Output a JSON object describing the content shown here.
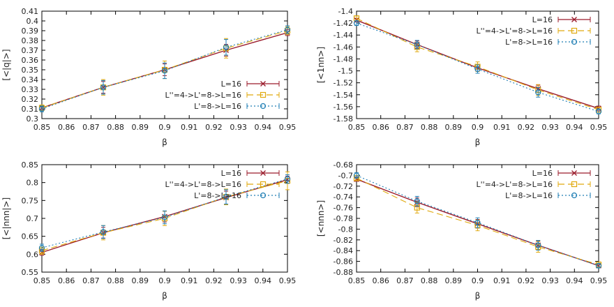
{
  "chart_data": [
    {
      "type": "line",
      "xlabel": "β",
      "ylabel": "[<|q|>]",
      "xlim": [
        0.85,
        0.95
      ],
      "ylim": [
        0.3,
        0.41
      ],
      "xticks": [
        "0.85",
        "0.86",
        "0.87",
        "0.88",
        "0.89",
        "0.9",
        "0.91",
        "0.92",
        "0.93",
        "0.94",
        "0.95"
      ],
      "yticks": [
        "0.3",
        "0.31",
        "0.32",
        "0.33",
        "0.34",
        "0.35",
        "0.36",
        "0.37",
        "0.38",
        "0.39",
        "0.4",
        "0.41"
      ],
      "legend_position": "bottom-right",
      "series": [
        {
          "name": "L=16",
          "x": [
            0.85,
            0.875,
            0.9,
            0.925,
            0.95
          ],
          "y": [
            0.311,
            0.332,
            0.35,
            0.37,
            0.388
          ],
          "err": [
            0.002,
            0.006,
            0.006,
            0.006,
            0.003
          ]
        },
        {
          "name": "L''=4->L'=8->L=16",
          "x": [
            0.85,
            0.875,
            0.9,
            0.925,
            0.95
          ],
          "y": [
            0.311,
            0.332,
            0.35,
            0.372,
            0.39
          ],
          "err": [
            0.003,
            0.008,
            0.009,
            0.01,
            0.004
          ]
        },
        {
          "name": "L'=8->L=16",
          "x": [
            0.85,
            0.875,
            0.9,
            0.925,
            0.95
          ],
          "y": [
            0.31,
            0.332,
            0.349,
            0.373,
            0.391
          ],
          "err": [
            0.003,
            0.007,
            0.008,
            0.008,
            0.004
          ]
        }
      ]
    },
    {
      "type": "line",
      "xlabel": "β",
      "ylabel": "[<1nn>]",
      "xlim": [
        0.85,
        0.95
      ],
      "ylim": [
        -1.58,
        -1.4
      ],
      "xticks": [
        "0.85",
        "0.86",
        "0.87",
        "0.88",
        "0.89",
        "0.9",
        "0.91",
        "0.92",
        "0.93",
        "0.94",
        "0.95"
      ],
      "yticks": [
        "-1.4",
        "-1.42",
        "-1.44",
        "-1.46",
        "-1.48",
        "-1.5",
        "-1.52",
        "-1.54",
        "-1.56",
        "-1.58"
      ],
      "legend_position": "top-right",
      "series": [
        {
          "name": "L=16",
          "x": [
            0.85,
            0.875,
            0.9,
            0.925,
            0.95
          ],
          "y": [
            -1.415,
            -1.456,
            -1.495,
            -1.53,
            -1.563
          ],
          "err": [
            0.003,
            0.006,
            0.006,
            0.006,
            0.004
          ]
        },
        {
          "name": "L''=4->L'=8->L=16",
          "x": [
            0.85,
            0.875,
            0.9,
            0.925,
            0.95
          ],
          "y": [
            -1.412,
            -1.46,
            -1.493,
            -1.532,
            -1.565
          ],
          "err": [
            0.004,
            0.008,
            0.008,
            0.009,
            0.004
          ]
        },
        {
          "name": "L'=8->L=16",
          "x": [
            0.85,
            0.875,
            0.9,
            0.925,
            0.95
          ],
          "y": [
            -1.42,
            -1.456,
            -1.497,
            -1.536,
            -1.568
          ],
          "err": [
            0.004,
            0.007,
            0.007,
            0.008,
            0.004
          ]
        }
      ]
    },
    {
      "type": "line",
      "xlabel": "β",
      "ylabel": "[<|nnn|>]",
      "xlim": [
        0.85,
        0.95
      ],
      "ylim": [
        0.55,
        0.85
      ],
      "xticks": [
        "0.85",
        "0.86",
        "0.87",
        "0.88",
        "0.89",
        "0.9",
        "0.91",
        "0.92",
        "0.93",
        "0.94",
        "0.95"
      ],
      "yticks": [
        "0.55",
        "0.6",
        "0.65",
        "0.7",
        "0.75",
        "0.8",
        "0.85"
      ],
      "legend_position": "top-right",
      "series": [
        {
          "name": "L=16",
          "x": [
            0.85,
            0.875,
            0.9,
            0.925,
            0.95
          ],
          "y": [
            0.605,
            0.66,
            0.705,
            0.758,
            0.808
          ],
          "err": [
            0.008,
            0.015,
            0.015,
            0.018,
            0.01
          ]
        },
        {
          "name": "L''=4->L'=8->L=16",
          "x": [
            0.85,
            0.875,
            0.9,
            0.925,
            0.95
          ],
          "y": [
            0.61,
            0.66,
            0.7,
            0.76,
            0.805
          ],
          "err": [
            0.01,
            0.02,
            0.02,
            0.022,
            0.025
          ]
        },
        {
          "name": "L'=8->L=16",
          "x": [
            0.85,
            0.875,
            0.9,
            0.925,
            0.95
          ],
          "y": [
            0.618,
            0.662,
            0.703,
            0.76,
            0.81
          ],
          "err": [
            0.01,
            0.018,
            0.018,
            0.02,
            0.012
          ]
        }
      ]
    },
    {
      "type": "line",
      "xlabel": "β",
      "ylabel": "[<nnn>]",
      "xlim": [
        0.85,
        0.95
      ],
      "ylim": [
        -0.88,
        -0.68
      ],
      "xticks": [
        "0.85",
        "0.86",
        "0.87",
        "0.88",
        "0.89",
        "0.9",
        "0.91",
        "0.92",
        "0.93",
        "0.94",
        "0.95"
      ],
      "yticks": [
        "-0.68",
        "-0.7",
        "-0.72",
        "-0.74",
        "-0.76",
        "-0.78",
        "-0.8",
        "-0.82",
        "-0.84",
        "-0.86",
        "-0.88"
      ],
      "legend_position": "top-right",
      "series": [
        {
          "name": "L=16",
          "x": [
            0.85,
            0.875,
            0.9,
            0.925,
            0.95
          ],
          "y": [
            -0.707,
            -0.75,
            -0.79,
            -0.83,
            -0.868
          ],
          "err": [
            0.004,
            0.008,
            0.008,
            0.008,
            0.004
          ]
        },
        {
          "name": "L''=4->L'=8->L=16",
          "x": [
            0.85,
            0.875,
            0.9,
            0.925,
            0.95
          ],
          "y": [
            -0.705,
            -0.76,
            -0.793,
            -0.833,
            -0.866
          ],
          "err": [
            0.005,
            0.01,
            0.01,
            0.01,
            0.005
          ]
        },
        {
          "name": "L'=8->L=16",
          "x": [
            0.85,
            0.875,
            0.9,
            0.925,
            0.95
          ],
          "y": [
            -0.7,
            -0.748,
            -0.788,
            -0.83,
            -0.868
          ],
          "err": [
            0.005,
            0.009,
            0.009,
            0.009,
            0.004
          ]
        }
      ]
    }
  ],
  "styles": {
    "series_colors": [
      "#9a1b2b",
      "#e0a90e",
      "#1f7eb4"
    ],
    "series_markers": [
      "x-mark",
      "square",
      "circle"
    ],
    "series_dash": [
      "solid",
      "long-dash",
      "dotted"
    ]
  }
}
